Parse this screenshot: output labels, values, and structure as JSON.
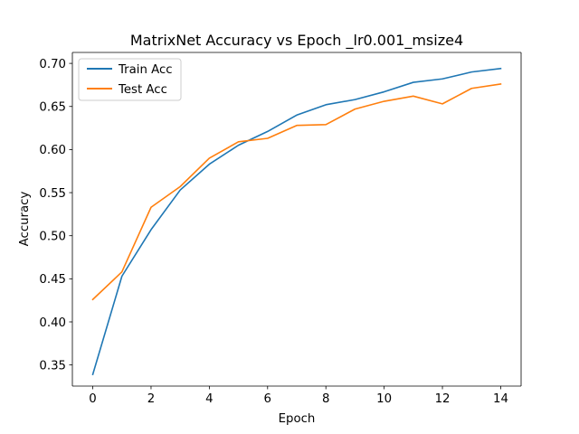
{
  "chart_data": {
    "type": "line",
    "title": "MatrixNet Accuracy vs Epoch _lr0.001_msize4",
    "xlabel": "Epoch",
    "ylabel": "Accuracy",
    "x": [
      0,
      1,
      2,
      3,
      4,
      5,
      6,
      7,
      8,
      9,
      10,
      11,
      12,
      13,
      14
    ],
    "xlim": [
      -0.7,
      14.7
    ],
    "ylim": [
      0.3255,
      0.7127
    ],
    "xticks": [
      0,
      2,
      4,
      6,
      8,
      10,
      12,
      14
    ],
    "xtick_labels": [
      "0",
      "2",
      "4",
      "6",
      "8",
      "10",
      "12",
      "14"
    ],
    "yticks": [
      0.35,
      0.4,
      0.45,
      0.5,
      0.55,
      0.6,
      0.65,
      0.7
    ],
    "ytick_labels": [
      "0.35",
      "0.40",
      "0.45",
      "0.50",
      "0.55",
      "0.60",
      "0.65",
      "0.70"
    ],
    "grid": false,
    "legend_position": "upper-left",
    "series": [
      {
        "name": "Train Acc",
        "color": "#1f77b4",
        "values": [
          0.339,
          0.453,
          0.507,
          0.553,
          0.583,
          0.605,
          0.621,
          0.64,
          0.652,
          0.658,
          0.667,
          0.678,
          0.682,
          0.69,
          0.694
        ]
      },
      {
        "name": "Test Acc",
        "color": "#ff7f0e",
        "values": [
          0.426,
          0.458,
          0.533,
          0.557,
          0.59,
          0.609,
          0.613,
          0.628,
          0.629,
          0.647,
          0.656,
          0.662,
          0.653,
          0.671,
          0.676
        ]
      }
    ]
  }
}
